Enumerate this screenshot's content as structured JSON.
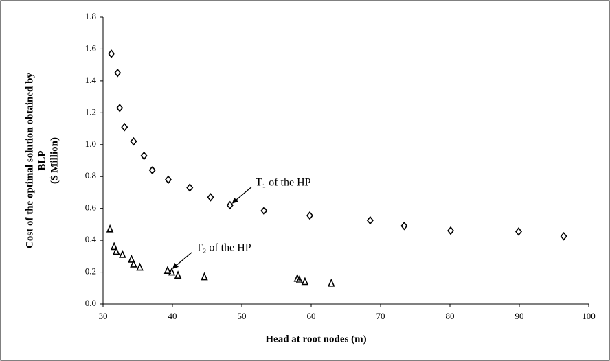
{
  "chart_data": {
    "type": "scatter",
    "y_label": [
      "Cost of the optimal solution obtained by",
      "BLP",
      "($ Million)"
    ],
    "x_label": "Head at root nodes (m)",
    "annotations": [
      {
        "text": "T₁ of the HP",
        "x": 48.6,
        "y": 0.63
      },
      {
        "text": "T₂ of the HP",
        "x": 40.0,
        "y": 0.22
      }
    ],
    "xlim": [
      30,
      100
    ],
    "xticks": [
      30,
      40,
      50,
      60,
      70,
      80,
      90,
      100
    ],
    "ylim": [
      0,
      1.8
    ],
    "yticks": [
      {
        "value": 0,
        "label": "0.0"
      },
      {
        "value": 0.2,
        "label": "0.2"
      },
      {
        "value": 0.4,
        "label": "0.4"
      },
      {
        "value": 0.6,
        "label": "0.6"
      },
      {
        "value": 0.8,
        "label": "0.8"
      },
      {
        "value": 1.0,
        "label": "1.0"
      },
      {
        "value": 1.2,
        "label": "1.2"
      },
      {
        "value": 1.4,
        "label": "1.4"
      },
      {
        "value": 1.6,
        "label": "1.6"
      },
      {
        "value": 1.8,
        "label": "1.8"
      }
    ],
    "series": [
      {
        "marker": "diamond",
        "color": "#000000",
        "x": [
          31.2,
          32.1,
          32.4,
          33.1,
          34.4,
          35.9,
          37.1,
          39.4,
          42.5,
          45.5,
          48.3,
          53.2,
          59.8,
          68.5,
          73.4,
          80.1,
          89.9,
          96.4
        ],
        "values": [
          1.57,
          1.45,
          1.23,
          1.11,
          1.02,
          0.93,
          0.84,
          0.78,
          0.73,
          0.67,
          0.62,
          0.585,
          0.555,
          0.525,
          0.49,
          0.46,
          0.455,
          0.425
        ]
      },
      {
        "marker": "triangle",
        "color": "#000000",
        "x": [
          31.0,
          31.6,
          31.9,
          32.8,
          34.1,
          34.4,
          35.3,
          39.3,
          39.9,
          40.8,
          44.6,
          58.0,
          58.3,
          59.1,
          62.9
        ],
        "values": [
          0.47,
          0.36,
          0.33,
          0.31,
          0.28,
          0.25,
          0.23,
          0.21,
          0.2,
          0.18,
          0.17,
          0.16,
          0.15,
          0.14,
          0.13
        ]
      }
    ]
  }
}
